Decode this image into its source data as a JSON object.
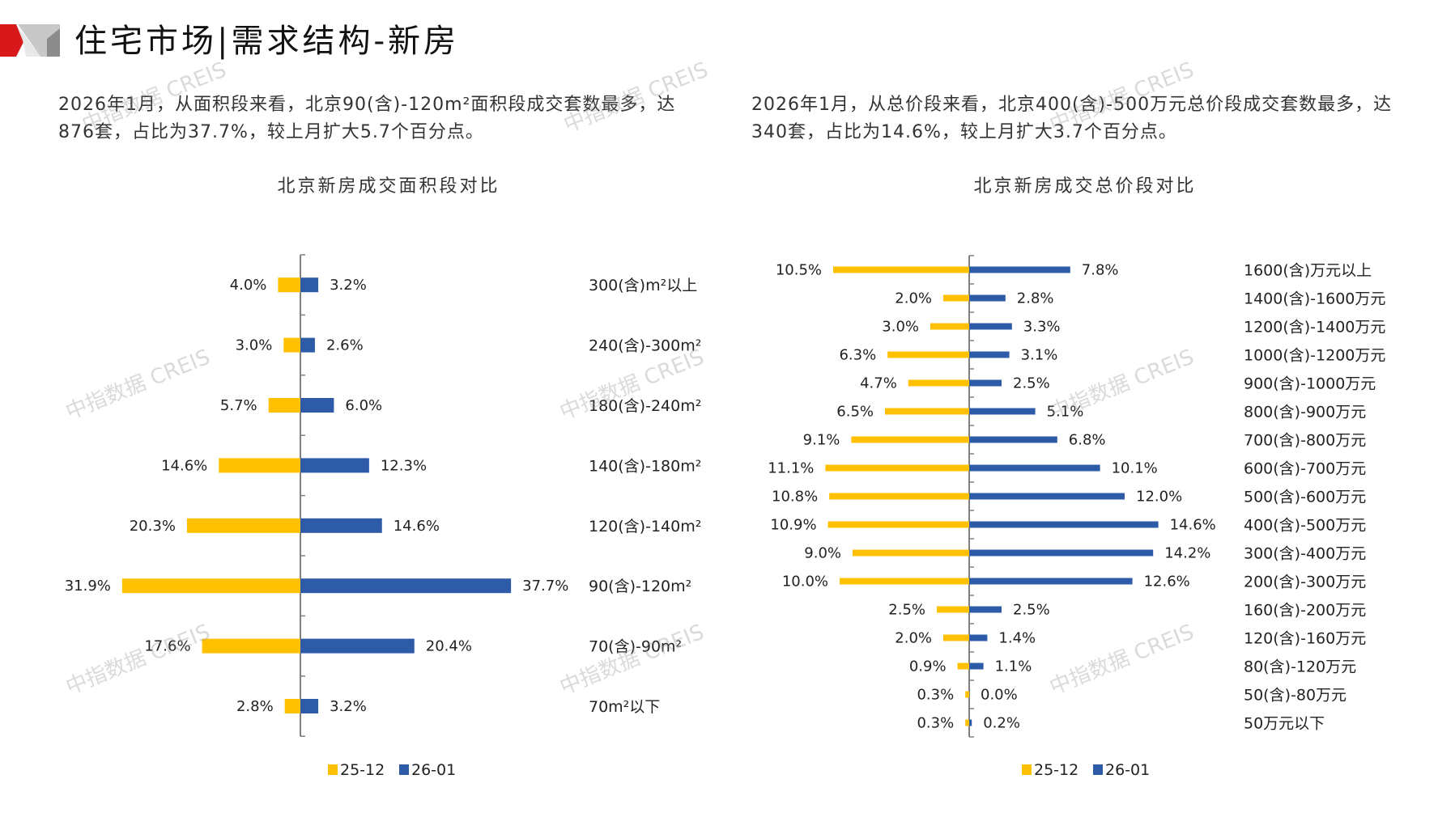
{
  "header": {
    "title": "住宅市场|需求结构-新房"
  },
  "descriptions": {
    "area": "2026年1月，从面积段来看，北京90(含)-120m²面积段成交套数最多，达876套，占比为37.7%，较上月扩大5.7个百分点。",
    "price": "2026年1月，从总价段来看，北京400(含)-500万元总价段成交套数最多，达340套，占比为14.6%，较上月扩大3.7个百分点。"
  },
  "watermark_text": "中指数据 CREIS",
  "colors": {
    "series_prev": "#FFC000",
    "series_curr": "#2E5BA8",
    "axis": "#808080"
  },
  "chart_data": [
    {
      "type": "bar",
      "orientation": "horizontal-butterfly",
      "title": "北京新房成交面积段对比",
      "legend": [
        "25-12",
        "26-01"
      ],
      "legend_position": "bottom",
      "categories": [
        "300(含)m²以上",
        "240(含)-300m²",
        "180(含)-240m²",
        "140(含)-180m²",
        "120(含)-140m²",
        "90(含)-120m²",
        "70(含)-90m²",
        "70m²以下"
      ],
      "series": [
        {
          "name": "25-12",
          "values": [
            4.0,
            3.0,
            5.7,
            14.6,
            20.3,
            31.9,
            17.6,
            2.8
          ],
          "labels": [
            "4.0%",
            "3.0%",
            "5.7%",
            "14.6%",
            "20.3%",
            "31.9%",
            "17.6%",
            "2.8%"
          ]
        },
        {
          "name": "26-01",
          "values": [
            3.2,
            2.6,
            6.0,
            12.3,
            14.6,
            37.7,
            20.4,
            3.2
          ],
          "labels": [
            "3.2%",
            "2.6%",
            "6.0%",
            "12.3%",
            "14.6%",
            "37.7%",
            "20.4%",
            "3.2%"
          ]
        }
      ],
      "unit": "%",
      "grid": false
    },
    {
      "type": "bar",
      "orientation": "horizontal-butterfly",
      "title": "北京新房成交总价段对比",
      "legend": [
        "25-12",
        "26-01"
      ],
      "legend_position": "bottom",
      "categories": [
        "1600(含)万元以上",
        "1400(含)-1600万元",
        "1200(含)-1400万元",
        "1000(含)-1200万元",
        "900(含)-1000万元",
        "800(含)-900万元",
        "700(含)-800万元",
        "600(含)-700万元",
        "500(含)-600万元",
        "400(含)-500万元",
        "300(含)-400万元",
        "200(含)-300万元",
        "160(含)-200万元",
        "120(含)-160万元",
        "80(含)-120万元",
        "50(含)-80万元",
        "50万元以下"
      ],
      "series": [
        {
          "name": "25-12",
          "values": [
            10.5,
            2.0,
            3.0,
            6.3,
            4.7,
            6.5,
            9.1,
            11.1,
            10.8,
            10.9,
            9.0,
            10.0,
            2.5,
            2.0,
            0.9,
            0.3,
            0.3
          ],
          "labels": [
            "10.5%",
            "2.0%",
            "3.0%",
            "6.3%",
            "4.7%",
            "6.5%",
            "9.1%",
            "11.1%",
            "10.8%",
            "10.9%",
            "9.0%",
            "10.0%",
            "2.5%",
            "2.0%",
            "0.9%",
            "0.3%",
            "0.3%"
          ]
        },
        {
          "name": "26-01",
          "values": [
            7.8,
            2.8,
            3.3,
            3.1,
            2.5,
            5.1,
            6.8,
            10.1,
            12.0,
            14.6,
            14.2,
            12.6,
            2.5,
            1.4,
            1.1,
            0.0,
            0.2
          ],
          "labels": [
            "7.8%",
            "2.8%",
            "3.3%",
            "3.1%",
            "2.5%",
            "5.1%",
            "6.8%",
            "10.1%",
            "12.0%",
            "14.6%",
            "14.2%",
            "12.6%",
            "2.5%",
            "1.4%",
            "1.1%",
            "0.0%",
            "0.2%"
          ]
        }
      ],
      "unit": "%",
      "grid": false
    }
  ]
}
